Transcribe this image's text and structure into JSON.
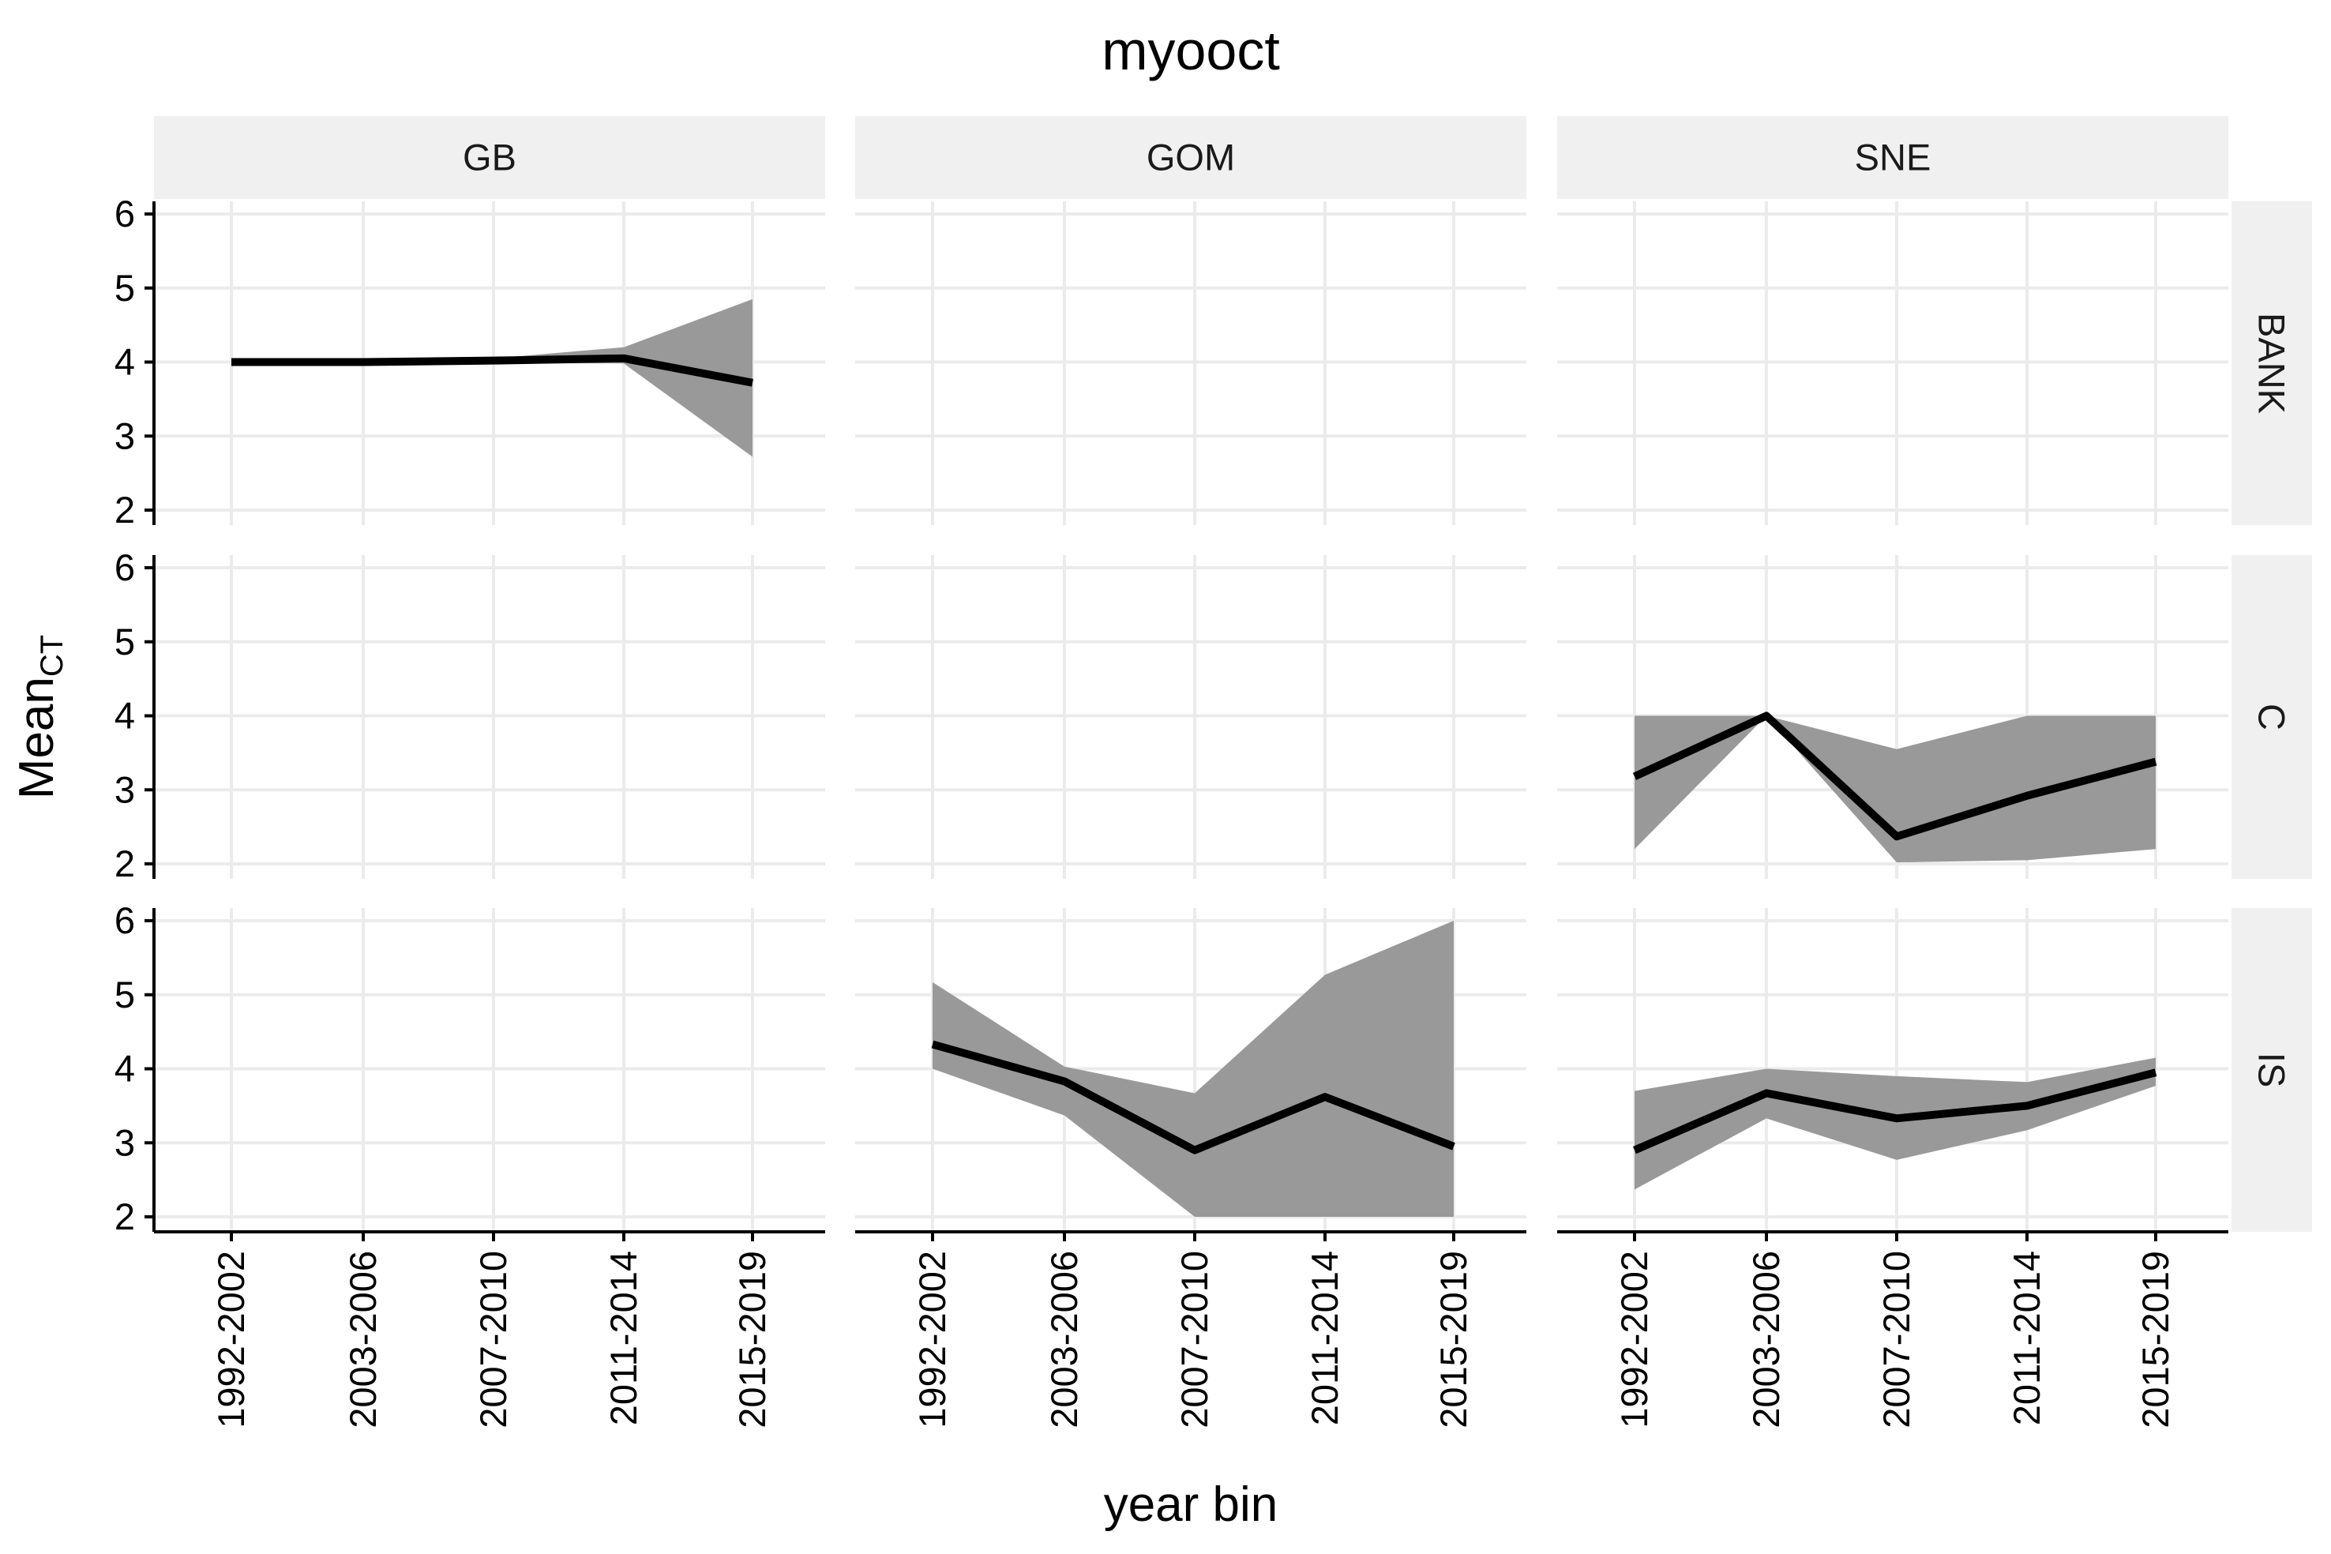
{
  "chart_data": {
    "type": "line",
    "title": "myooct",
    "xlabel": "year bin",
    "ylabel": "Mean",
    "ylabel_subscript": "CT",
    "categories": [
      "1992-2002",
      "2003-2006",
      "2007-2010",
      "2011-2014",
      "2015-2019"
    ],
    "ylim": [
      2,
      6
    ],
    "yticks": [
      2,
      3,
      4,
      5,
      6
    ],
    "grid": true,
    "legend": "none",
    "facet_columns": [
      "GB",
      "GOM",
      "SNE"
    ],
    "facet_rows": [
      "BANK",
      "C",
      "IS"
    ],
    "colors": {
      "line": "#000000",
      "ribbon": "#999999",
      "strip": "#f0f0f0",
      "grid": "#ebebeb"
    },
    "panels": [
      {
        "col": "GB",
        "row": "BANK",
        "mean": [
          4.0,
          4.0,
          4.02,
          4.05,
          3.72
        ],
        "lower": [
          4.0,
          4.0,
          4.0,
          3.98,
          2.72
        ],
        "upper": [
          4.0,
          4.0,
          4.05,
          4.2,
          4.85
        ]
      },
      {
        "col": "GB",
        "row": "C",
        "mean": null,
        "lower": null,
        "upper": null
      },
      {
        "col": "GB",
        "row": "IS",
        "mean": null,
        "lower": null,
        "upper": null
      },
      {
        "col": "GOM",
        "row": "BANK",
        "mean": null,
        "lower": null,
        "upper": null
      },
      {
        "col": "GOM",
        "row": "C",
        "mean": null,
        "lower": null,
        "upper": null
      },
      {
        "col": "GOM",
        "row": "IS",
        "mean": [
          4.33,
          3.83,
          2.9,
          3.62,
          2.95
        ],
        "lower": [
          4.0,
          3.37,
          2.0,
          2.0,
          2.0
        ],
        "upper": [
          5.17,
          4.03,
          3.67,
          5.27,
          6.0
        ]
      },
      {
        "col": "SNE",
        "row": "BANK",
        "mean": null,
        "lower": null,
        "upper": null
      },
      {
        "col": "SNE",
        "row": "C",
        "mean": [
          3.18,
          4.0,
          2.37,
          2.92,
          3.38
        ],
        "lower": [
          2.2,
          4.0,
          2.02,
          2.05,
          2.2
        ],
        "upper": [
          4.0,
          4.0,
          3.55,
          4.0,
          4.0
        ]
      },
      {
        "col": "SNE",
        "row": "IS",
        "mean": [
          2.9,
          3.67,
          3.33,
          3.5,
          3.95
        ],
        "lower": [
          2.37,
          3.33,
          2.77,
          3.17,
          3.77
        ],
        "upper": [
          3.7,
          4.0,
          3.9,
          3.82,
          4.15
        ]
      }
    ]
  }
}
